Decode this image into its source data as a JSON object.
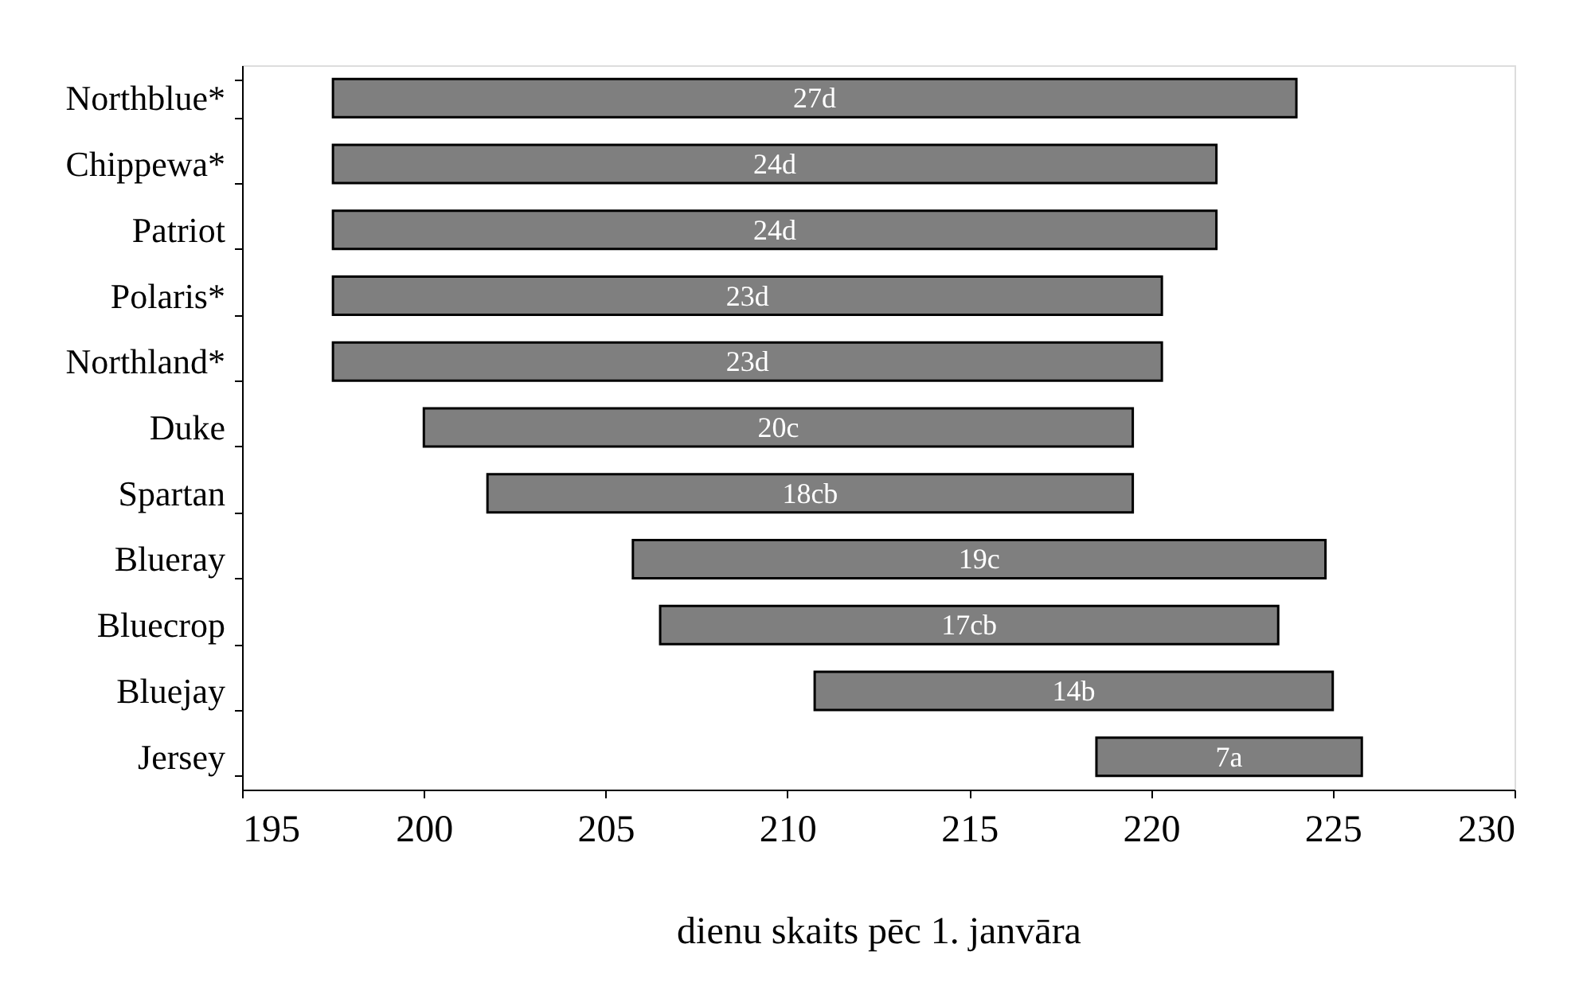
{
  "chart_data": {
    "type": "bar",
    "orientation": "horizontal",
    "xlabel": "dienu skaits pēc 1. janvāra",
    "categories": [
      "Northblue*",
      "Chippewa*",
      "Patriot",
      "Polaris*",
      "Northland*",
      "Duke",
      "Spartan",
      "Blueray",
      "Bluecrop",
      "Bluejay",
      "Jersey"
    ],
    "base": [
      197.5,
      197.5,
      197.5,
      197.5,
      197.5,
      200,
      201.75,
      205.75,
      206.5,
      210.75,
      218.5
    ],
    "values": [
      26.5,
      24.3,
      24.3,
      22.8,
      22.8,
      19.5,
      17.75,
      19.05,
      17,
      14.25,
      7.3
    ],
    "value_labels": [
      "27d",
      "24d",
      "24d",
      "23d",
      "23d",
      "20c",
      "18cb",
      "19c",
      "17cb",
      "14b",
      "7a"
    ],
    "color": "#7f7f7f",
    "xlim": [
      195,
      230
    ],
    "xticks": [
      195,
      200,
      205,
      210,
      215,
      220,
      225,
      230
    ],
    "grid": false,
    "legend": false
  }
}
